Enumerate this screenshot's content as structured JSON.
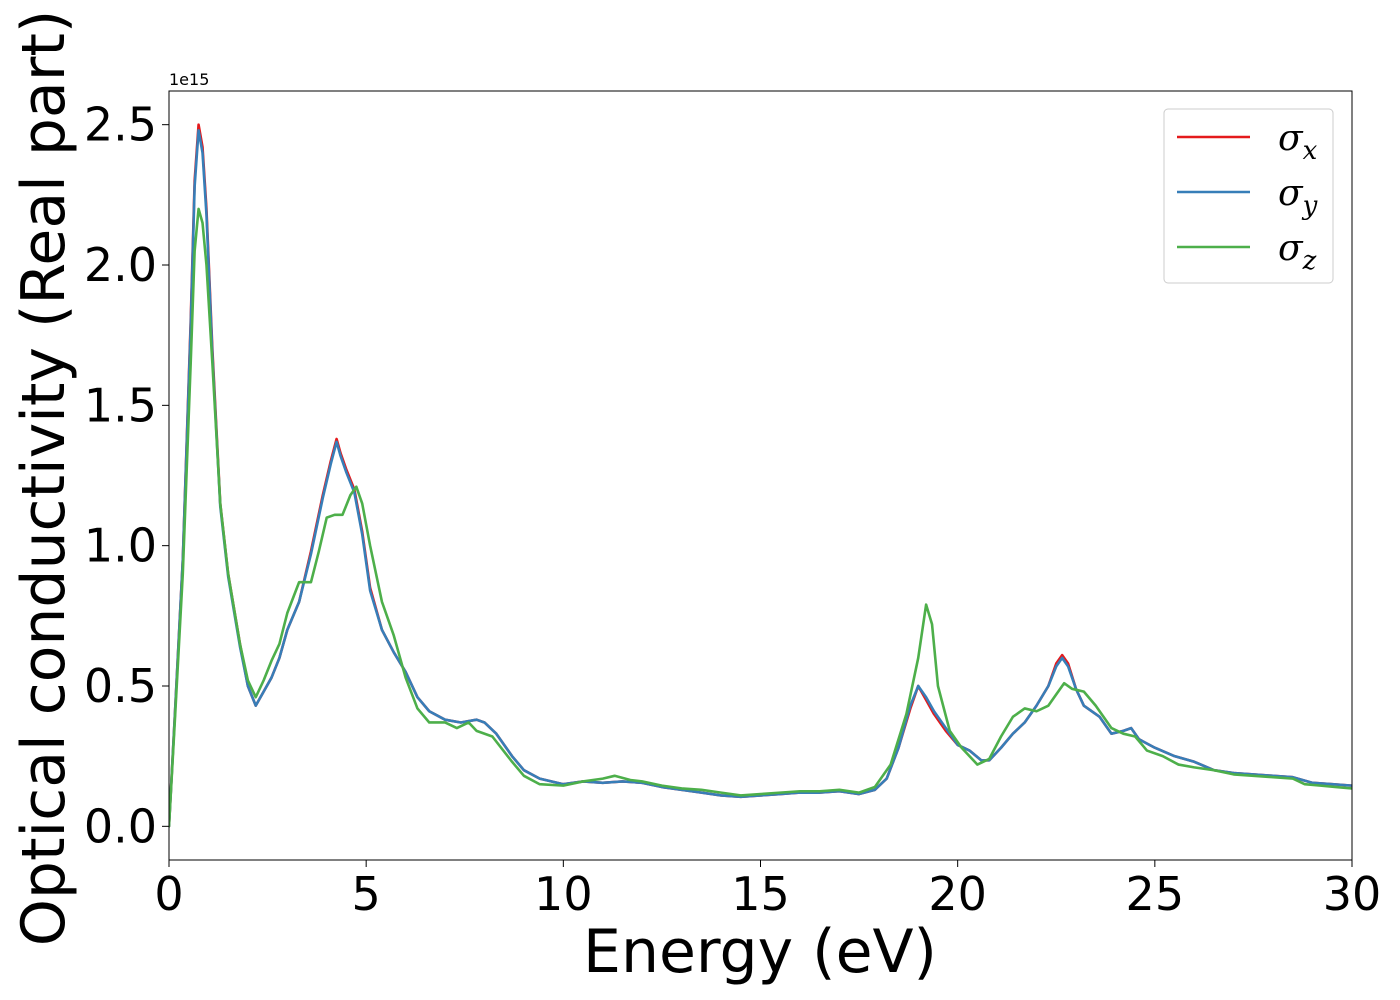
{
  "chart_data": {
    "type": "line",
    "title": "",
    "xlabel": "Energy (eV)",
    "ylabel": "Optical conductivity (Real part)",
    "y_offset_label": "1e15",
    "xlim": [
      0,
      30
    ],
    "ylim": [
      -0.12,
      2.62
    ],
    "xticks": [
      0,
      5,
      10,
      15,
      20,
      25,
      30
    ],
    "xtick_labels": [
      "0",
      "5",
      "10",
      "15",
      "20",
      "25",
      "30"
    ],
    "yticks": [
      0.0,
      0.5,
      1.0,
      1.5,
      2.0,
      2.5
    ],
    "ytick_labels": [
      "0.0",
      "0.5",
      "1.0",
      "1.5",
      "2.0",
      "2.5"
    ],
    "grid": false,
    "legend_position": "top-right",
    "series": [
      {
        "name": "σx",
        "legend_base": "σ",
        "legend_sub": "x",
        "color": "#e41a1c",
        "points": [
          [
            0.0,
            0.0
          ],
          [
            0.15,
            0.4
          ],
          [
            0.35,
            0.95
          ],
          [
            0.55,
            1.8
          ],
          [
            0.65,
            2.3
          ],
          [
            0.75,
            2.5
          ],
          [
            0.85,
            2.42
          ],
          [
            0.95,
            2.2
          ],
          [
            1.1,
            1.7
          ],
          [
            1.3,
            1.15
          ],
          [
            1.5,
            0.9
          ],
          [
            1.8,
            0.65
          ],
          [
            2.0,
            0.5
          ],
          [
            2.2,
            0.43
          ],
          [
            2.4,
            0.48
          ],
          [
            2.6,
            0.53
          ],
          [
            2.8,
            0.6
          ],
          [
            3.0,
            0.7
          ],
          [
            3.3,
            0.8
          ],
          [
            3.6,
            0.98
          ],
          [
            3.9,
            1.18
          ],
          [
            4.1,
            1.3
          ],
          [
            4.25,
            1.38
          ],
          [
            4.35,
            1.33
          ],
          [
            4.5,
            1.27
          ],
          [
            4.7,
            1.2
          ],
          [
            4.9,
            1.05
          ],
          [
            5.1,
            0.85
          ],
          [
            5.4,
            0.7
          ],
          [
            5.7,
            0.62
          ],
          [
            6.0,
            0.55
          ],
          [
            6.3,
            0.46
          ],
          [
            6.6,
            0.41
          ],
          [
            7.0,
            0.38
          ],
          [
            7.4,
            0.37
          ],
          [
            7.8,
            0.38
          ],
          [
            8.0,
            0.37
          ],
          [
            8.3,
            0.33
          ],
          [
            8.7,
            0.25
          ],
          [
            9.0,
            0.2
          ],
          [
            9.4,
            0.17
          ],
          [
            10.0,
            0.15
          ],
          [
            10.5,
            0.16
          ],
          [
            11.0,
            0.155
          ],
          [
            11.5,
            0.16
          ],
          [
            12.0,
            0.155
          ],
          [
            12.5,
            0.14
          ],
          [
            13.0,
            0.13
          ],
          [
            13.5,
            0.12
          ],
          [
            14.0,
            0.11
          ],
          [
            14.5,
            0.105
          ],
          [
            15.0,
            0.11
          ],
          [
            15.5,
            0.115
          ],
          [
            16.0,
            0.12
          ],
          [
            16.5,
            0.12
          ],
          [
            17.0,
            0.125
          ],
          [
            17.5,
            0.115
          ],
          [
            17.9,
            0.13
          ],
          [
            18.2,
            0.17
          ],
          [
            18.5,
            0.28
          ],
          [
            18.8,
            0.42
          ],
          [
            19.0,
            0.5
          ],
          [
            19.2,
            0.45
          ],
          [
            19.4,
            0.4
          ],
          [
            19.7,
            0.34
          ],
          [
            20.0,
            0.29
          ],
          [
            20.3,
            0.27
          ],
          [
            20.6,
            0.235
          ],
          [
            20.8,
            0.235
          ],
          [
            21.1,
            0.28
          ],
          [
            21.4,
            0.33
          ],
          [
            21.7,
            0.37
          ],
          [
            22.0,
            0.43
          ],
          [
            22.3,
            0.5
          ],
          [
            22.5,
            0.58
          ],
          [
            22.65,
            0.61
          ],
          [
            22.8,
            0.58
          ],
          [
            23.0,
            0.49
          ],
          [
            23.2,
            0.43
          ],
          [
            23.6,
            0.39
          ],
          [
            23.9,
            0.33
          ],
          [
            24.2,
            0.34
          ],
          [
            24.4,
            0.35
          ],
          [
            24.6,
            0.31
          ],
          [
            25.0,
            0.28
          ],
          [
            25.5,
            0.25
          ],
          [
            26.0,
            0.23
          ],
          [
            26.5,
            0.2
          ],
          [
            27.0,
            0.19
          ],
          [
            27.5,
            0.185
          ],
          [
            28.0,
            0.18
          ],
          [
            28.5,
            0.175
          ],
          [
            29.0,
            0.155
          ],
          [
            29.5,
            0.15
          ],
          [
            30.0,
            0.145
          ]
        ]
      },
      {
        "name": "σy",
        "legend_base": "σ",
        "legend_sub": "y",
        "color": "#377eb8",
        "points": [
          [
            0.0,
            0.0
          ],
          [
            0.15,
            0.4
          ],
          [
            0.35,
            0.95
          ],
          [
            0.55,
            1.78
          ],
          [
            0.65,
            2.28
          ],
          [
            0.75,
            2.48
          ],
          [
            0.85,
            2.4
          ],
          [
            0.95,
            2.18
          ],
          [
            1.1,
            1.68
          ],
          [
            1.3,
            1.14
          ],
          [
            1.5,
            0.89
          ],
          [
            1.8,
            0.64
          ],
          [
            2.0,
            0.5
          ],
          [
            2.2,
            0.43
          ],
          [
            2.4,
            0.48
          ],
          [
            2.6,
            0.53
          ],
          [
            2.8,
            0.6
          ],
          [
            3.0,
            0.7
          ],
          [
            3.3,
            0.8
          ],
          [
            3.6,
            0.97
          ],
          [
            3.9,
            1.17
          ],
          [
            4.1,
            1.29
          ],
          [
            4.25,
            1.37
          ],
          [
            4.35,
            1.32
          ],
          [
            4.5,
            1.26
          ],
          [
            4.7,
            1.19
          ],
          [
            4.9,
            1.04
          ],
          [
            5.1,
            0.84
          ],
          [
            5.4,
            0.7
          ],
          [
            5.7,
            0.62
          ],
          [
            6.0,
            0.55
          ],
          [
            6.3,
            0.46
          ],
          [
            6.6,
            0.41
          ],
          [
            7.0,
            0.38
          ],
          [
            7.4,
            0.37
          ],
          [
            7.8,
            0.38
          ],
          [
            8.0,
            0.37
          ],
          [
            8.3,
            0.33
          ],
          [
            8.7,
            0.25
          ],
          [
            9.0,
            0.2
          ],
          [
            9.4,
            0.17
          ],
          [
            10.0,
            0.15
          ],
          [
            10.5,
            0.16
          ],
          [
            11.0,
            0.155
          ],
          [
            11.5,
            0.16
          ],
          [
            12.0,
            0.155
          ],
          [
            12.5,
            0.14
          ],
          [
            13.0,
            0.13
          ],
          [
            13.5,
            0.12
          ],
          [
            14.0,
            0.11
          ],
          [
            14.5,
            0.105
          ],
          [
            15.0,
            0.11
          ],
          [
            15.5,
            0.115
          ],
          [
            16.0,
            0.12
          ],
          [
            16.5,
            0.12
          ],
          [
            17.0,
            0.125
          ],
          [
            17.5,
            0.115
          ],
          [
            17.9,
            0.13
          ],
          [
            18.2,
            0.17
          ],
          [
            18.5,
            0.28
          ],
          [
            18.8,
            0.43
          ],
          [
            19.0,
            0.5
          ],
          [
            19.2,
            0.46
          ],
          [
            19.4,
            0.41
          ],
          [
            19.7,
            0.35
          ],
          [
            20.0,
            0.29
          ],
          [
            20.3,
            0.27
          ],
          [
            20.6,
            0.235
          ],
          [
            20.8,
            0.235
          ],
          [
            21.1,
            0.28
          ],
          [
            21.4,
            0.33
          ],
          [
            21.7,
            0.37
          ],
          [
            22.0,
            0.43
          ],
          [
            22.3,
            0.5
          ],
          [
            22.5,
            0.57
          ],
          [
            22.65,
            0.6
          ],
          [
            22.8,
            0.57
          ],
          [
            23.0,
            0.49
          ],
          [
            23.2,
            0.43
          ],
          [
            23.6,
            0.39
          ],
          [
            23.9,
            0.33
          ],
          [
            24.2,
            0.34
          ],
          [
            24.4,
            0.35
          ],
          [
            24.6,
            0.31
          ],
          [
            25.0,
            0.28
          ],
          [
            25.5,
            0.25
          ],
          [
            26.0,
            0.23
          ],
          [
            26.5,
            0.2
          ],
          [
            27.0,
            0.19
          ],
          [
            27.5,
            0.185
          ],
          [
            28.0,
            0.18
          ],
          [
            28.5,
            0.175
          ],
          [
            29.0,
            0.155
          ],
          [
            29.5,
            0.15
          ],
          [
            30.0,
            0.145
          ]
        ]
      },
      {
        "name": "σz",
        "legend_base": "σ",
        "legend_sub": "z",
        "color": "#4daf4a",
        "points": [
          [
            0.0,
            0.0
          ],
          [
            0.15,
            0.38
          ],
          [
            0.35,
            0.9
          ],
          [
            0.55,
            1.65
          ],
          [
            0.65,
            2.05
          ],
          [
            0.75,
            2.2
          ],
          [
            0.85,
            2.15
          ],
          [
            0.95,
            2.0
          ],
          [
            1.1,
            1.65
          ],
          [
            1.3,
            1.15
          ],
          [
            1.5,
            0.9
          ],
          [
            1.8,
            0.65
          ],
          [
            2.0,
            0.52
          ],
          [
            2.2,
            0.46
          ],
          [
            2.4,
            0.52
          ],
          [
            2.6,
            0.59
          ],
          [
            2.8,
            0.65
          ],
          [
            3.0,
            0.76
          ],
          [
            3.3,
            0.87
          ],
          [
            3.6,
            0.87
          ],
          [
            3.8,
            0.98
          ],
          [
            4.0,
            1.1
          ],
          [
            4.2,
            1.11
          ],
          [
            4.4,
            1.11
          ],
          [
            4.6,
            1.18
          ],
          [
            4.75,
            1.21
          ],
          [
            4.9,
            1.15
          ],
          [
            5.1,
            1.0
          ],
          [
            5.4,
            0.8
          ],
          [
            5.7,
            0.68
          ],
          [
            6.0,
            0.53
          ],
          [
            6.3,
            0.42
          ],
          [
            6.6,
            0.37
          ],
          [
            7.0,
            0.37
          ],
          [
            7.3,
            0.35
          ],
          [
            7.6,
            0.37
          ],
          [
            7.8,
            0.34
          ],
          [
            8.2,
            0.32
          ],
          [
            8.7,
            0.23
          ],
          [
            9.0,
            0.18
          ],
          [
            9.4,
            0.15
          ],
          [
            10.0,
            0.145
          ],
          [
            10.5,
            0.16
          ],
          [
            11.0,
            0.17
          ],
          [
            11.3,
            0.18
          ],
          [
            11.7,
            0.165
          ],
          [
            12.0,
            0.16
          ],
          [
            12.5,
            0.145
          ],
          [
            13.0,
            0.135
          ],
          [
            13.5,
            0.13
          ],
          [
            14.0,
            0.12
          ],
          [
            14.5,
            0.11
          ],
          [
            15.0,
            0.115
          ],
          [
            15.5,
            0.12
          ],
          [
            16.0,
            0.125
          ],
          [
            16.5,
            0.125
          ],
          [
            17.0,
            0.13
          ],
          [
            17.5,
            0.12
          ],
          [
            17.9,
            0.14
          ],
          [
            18.3,
            0.22
          ],
          [
            18.7,
            0.4
          ],
          [
            19.0,
            0.6
          ],
          [
            19.2,
            0.79
          ],
          [
            19.35,
            0.72
          ],
          [
            19.5,
            0.5
          ],
          [
            19.8,
            0.34
          ],
          [
            20.1,
            0.28
          ],
          [
            20.5,
            0.22
          ],
          [
            20.8,
            0.24
          ],
          [
            21.1,
            0.32
          ],
          [
            21.4,
            0.39
          ],
          [
            21.7,
            0.42
          ],
          [
            22.0,
            0.41
          ],
          [
            22.3,
            0.43
          ],
          [
            22.5,
            0.47
          ],
          [
            22.7,
            0.51
          ],
          [
            22.9,
            0.49
          ],
          [
            23.2,
            0.48
          ],
          [
            23.5,
            0.43
          ],
          [
            23.9,
            0.35
          ],
          [
            24.2,
            0.33
          ],
          [
            24.5,
            0.32
          ],
          [
            24.8,
            0.27
          ],
          [
            25.2,
            0.25
          ],
          [
            25.6,
            0.22
          ],
          [
            26.0,
            0.21
          ],
          [
            26.5,
            0.2
          ],
          [
            27.0,
            0.185
          ],
          [
            27.5,
            0.18
          ],
          [
            28.0,
            0.175
          ],
          [
            28.5,
            0.17
          ],
          [
            28.8,
            0.15
          ],
          [
            29.2,
            0.145
          ],
          [
            29.6,
            0.14
          ],
          [
            30.0,
            0.135
          ]
        ]
      }
    ]
  }
}
